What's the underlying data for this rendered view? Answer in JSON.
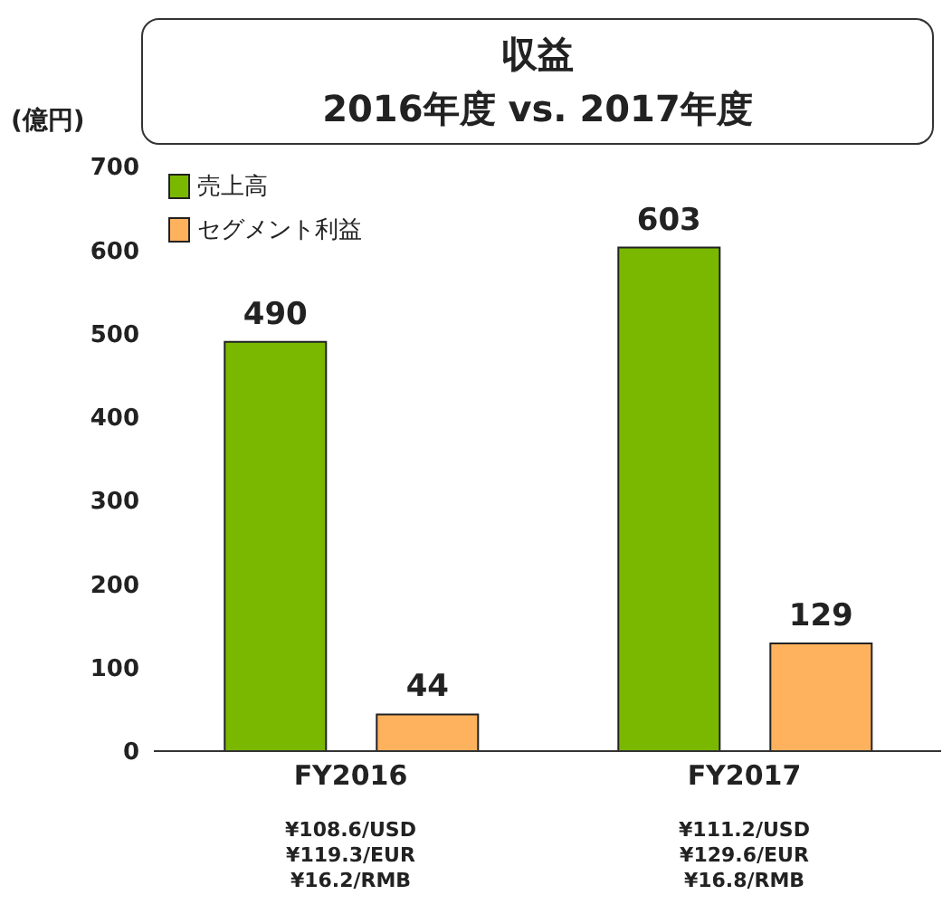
{
  "chart_data": {
    "type": "bar",
    "title": "収益",
    "subtitle": "2016年度 vs. 2017年度",
    "ylabel": "(億円)",
    "categories": [
      "FY2016",
      "FY2017"
    ],
    "series": [
      {
        "name": "売上高",
        "color": "#7ab800",
        "values": [
          490,
          603
        ]
      },
      {
        "name": "セグメント利益",
        "color": "#ffb25e",
        "values": [
          44,
          129
        ]
      }
    ],
    "ylim": [
      0,
      700
    ],
    "yticks": [
      0,
      100,
      200,
      300,
      400,
      500,
      600,
      700
    ],
    "grid": false,
    "legend": "top left",
    "data_labels": true,
    "annotations": [
      "¥108.6/USD\n¥119.3/EUR\n¥16.2/RMB",
      "¥111.2/USD\n¥129.6/EUR\n¥16.8/RMB"
    ]
  }
}
